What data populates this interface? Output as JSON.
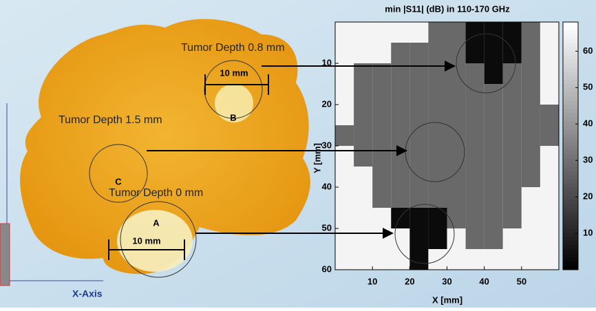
{
  "photo": {
    "annotations": [
      {
        "heading": "Tumor Depth 0.8 mm",
        "scale": "10 mm",
        "letter": "B"
      },
      {
        "heading": "Tumor Depth 1.5 mm",
        "letter": "C"
      },
      {
        "heading": "Tumor Depth 0 mm",
        "scale": "10 mm",
        "letter": "A"
      }
    ],
    "axis_label": "X-Axis"
  },
  "chart_data": {
    "type": "heatmap",
    "title": "min |S11| (dB) in 110-170 GHz",
    "x_label": "X [mm]",
    "y_label": "Y [mm]",
    "x": [
      2.5,
      7.5,
      12.5,
      17.5,
      22.5,
      27.5,
      32.5,
      37.5,
      42.5,
      47.5,
      52.5,
      57.5
    ],
    "y": [
      2.5,
      7.5,
      12.5,
      17.5,
      22.5,
      27.5,
      32.5,
      37.5,
      42.5,
      47.5,
      52.5,
      57.5
    ],
    "z": [
      [
        65,
        65,
        65,
        65,
        65,
        28,
        28,
        3,
        3,
        3,
        28,
        65
      ],
      [
        65,
        65,
        65,
        28,
        28,
        28,
        28,
        3,
        3,
        3,
        28,
        65
      ],
      [
        65,
        28,
        28,
        28,
        28,
        28,
        28,
        28,
        3,
        28,
        28,
        65
      ],
      [
        65,
        28,
        28,
        28,
        28,
        28,
        28,
        28,
        28,
        28,
        28,
        65
      ],
      [
        65,
        28,
        28,
        28,
        28,
        28,
        28,
        28,
        28,
        28,
        28,
        28
      ],
      [
        28,
        28,
        28,
        28,
        28,
        28,
        28,
        28,
        28,
        28,
        28,
        28
      ],
      [
        65,
        28,
        28,
        28,
        28,
        28,
        28,
        28,
        28,
        28,
        28,
        65
      ],
      [
        65,
        65,
        28,
        28,
        28,
        28,
        28,
        28,
        28,
        28,
        28,
        65
      ],
      [
        65,
        65,
        28,
        28,
        28,
        28,
        28,
        28,
        28,
        28,
        65,
        65
      ],
      [
        65,
        65,
        65,
        3,
        3,
        3,
        28,
        28,
        28,
        28,
        65,
        65
      ],
      [
        65,
        65,
        65,
        65,
        3,
        3,
        65,
        28,
        28,
        65,
        65,
        65
      ],
      [
        65,
        65,
        65,
        65,
        3,
        65,
        65,
        65,
        65,
        65,
        65,
        65
      ]
    ],
    "xlim": [
      0,
      60
    ],
    "ylim": [
      0,
      60
    ],
    "y_reversed": true,
    "xticks": [
      10,
      20,
      30,
      40,
      50
    ],
    "yticks": [
      10,
      20,
      30,
      40,
      50,
      60
    ],
    "colormap": "gray",
    "clim": [
      0,
      68
    ],
    "cticks": [
      10,
      20,
      30,
      40,
      50,
      60
    ]
  }
}
